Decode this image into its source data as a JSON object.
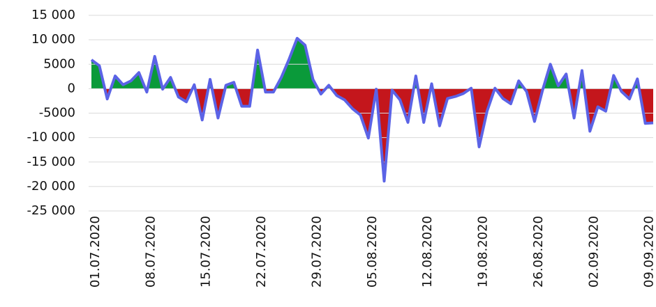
{
  "chart_data": {
    "type": "area",
    "categories": [
      "01.07.2020",
      null,
      null,
      null,
      null,
      null,
      null,
      "08.07.2020",
      null,
      null,
      null,
      null,
      null,
      null,
      "15.07.2020",
      null,
      null,
      null,
      null,
      null,
      null,
      "22.07.2020",
      null,
      null,
      null,
      null,
      null,
      null,
      "29.07.2020",
      null,
      null,
      null,
      null,
      null,
      null,
      "05.08.2020",
      null,
      null,
      null,
      null,
      null,
      null,
      "12.08.2020",
      null,
      null,
      null,
      null,
      null,
      null,
      "19.08.2020",
      null,
      null,
      null,
      null,
      null,
      null,
      "26.08.2020",
      null,
      null,
      null,
      null,
      null,
      null,
      "02.09.2020",
      null,
      null,
      null,
      null,
      null,
      null,
      "09.09.2020",
      null
    ],
    "values": [
      5900,
      4700,
      -2100,
      2600,
      800,
      1600,
      3300,
      -700,
      6600,
      -100,
      2300,
      -1700,
      -2700,
      800,
      -6400,
      1900,
      -6000,
      700,
      1300,
      -3600,
      -3600,
      7900,
      -700,
      -700,
      2300,
      6100,
      10300,
      8900,
      1900,
      -1100,
      700,
      -1400,
      -2300,
      -4100,
      -5400,
      -10100,
      -100,
      -18900,
      -300,
      -2300,
      -6900,
      2600,
      -6900,
      1000,
      -7600,
      -2000,
      -1600,
      -1000,
      100,
      -11900,
      -4600,
      100,
      -2000,
      -3100,
      1600,
      -600,
      -6700,
      -400,
      5000,
      600,
      3000,
      -6000,
      3700,
      -8700,
      -3700,
      -4600,
      2700,
      -600,
      -2100,
      2000,
      -7100,
      -7000
    ],
    "line_color": "#5b63e6",
    "positive_color": "#0a9a3a",
    "negative_color": "#c4161c",
    "ylim": [
      -25000,
      15000
    ],
    "yticks": [
      {
        "value": -25000,
        "label": "-25 000"
      },
      {
        "value": -20000,
        "label": "-20 000"
      },
      {
        "value": -15000,
        "label": "-15 000"
      },
      {
        "value": -10000,
        "label": "-10 000"
      },
      -5000,
      0,
      5000,
      {
        "value": 10000,
        "label": "10 000"
      },
      {
        "value": 15000,
        "label": "15 000"
      }
    ],
    "grid": true
  }
}
